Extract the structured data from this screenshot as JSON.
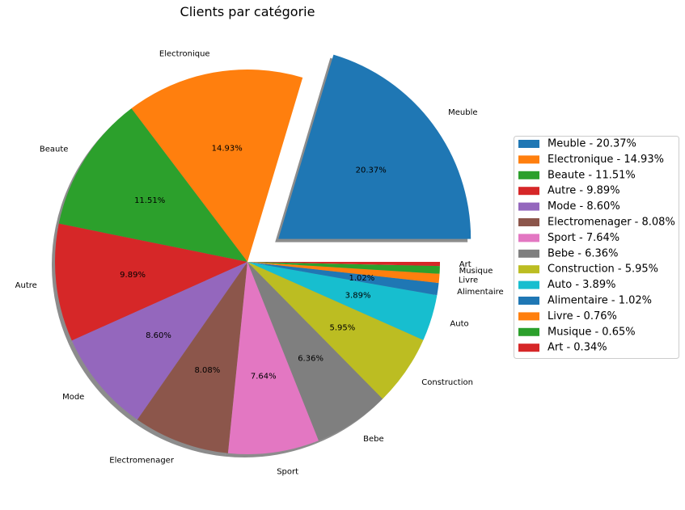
{
  "chart_data": {
    "type": "pie",
    "title": "Clients par catégorie",
    "legend_position": "right",
    "slices": [
      {
        "label": "Meuble",
        "value": 20.37,
        "pct_label": "20.37%",
        "legend": "Meuble - 20.37%",
        "color": "#1f77b4",
        "exploded": true
      },
      {
        "label": "Electronique",
        "value": 14.93,
        "pct_label": "14.93%",
        "legend": "Electronique - 14.93%",
        "color": "#ff7f0e"
      },
      {
        "label": "Beaute",
        "value": 11.51,
        "pct_label": "11.51%",
        "legend": "Beaute - 11.51%",
        "color": "#2ca02c"
      },
      {
        "label": "Autre",
        "value": 9.89,
        "pct_label": "9.89%",
        "legend": "Autre - 9.89%",
        "color": "#d62728"
      },
      {
        "label": "Mode",
        "value": 8.6,
        "pct_label": "8.60%",
        "legend": "Mode - 8.60%",
        "color": "#9467bd"
      },
      {
        "label": "Electromenager",
        "value": 8.08,
        "pct_label": "8.08%",
        "legend": "Electromenager - 8.08%",
        "color": "#8c564b"
      },
      {
        "label": "Sport",
        "value": 7.64,
        "pct_label": "7.64%",
        "legend": "Sport - 7.64%",
        "color": "#e377c2"
      },
      {
        "label": "Bebe",
        "value": 6.36,
        "pct_label": "6.36%",
        "legend": "Bebe - 6.36%",
        "color": "#7f7f7f"
      },
      {
        "label": "Construction",
        "value": 5.95,
        "pct_label": "5.95%",
        "legend": "Construction - 5.95%",
        "color": "#bcbd22"
      },
      {
        "label": "Auto",
        "value": 3.89,
        "pct_label": "3.89%",
        "legend": "Auto - 3.89%",
        "color": "#17becf"
      },
      {
        "label": "Alimentaire",
        "value": 1.02,
        "pct_label": "1.02%",
        "legend": "Alimentaire - 1.02%",
        "color": "#1f77b4"
      },
      {
        "label": "Livre",
        "value": 0.76,
        "pct_label": "",
        "legend": "Livre - 0.76%",
        "color": "#ff7f0e"
      },
      {
        "label": "Musique",
        "value": 0.65,
        "pct_label": "",
        "legend": "Musique - 0.65%",
        "color": "#2ca02c"
      },
      {
        "label": "Art",
        "value": 0.34,
        "pct_label": "",
        "legend": "Art - 0.34%",
        "color": "#d62728"
      }
    ]
  }
}
